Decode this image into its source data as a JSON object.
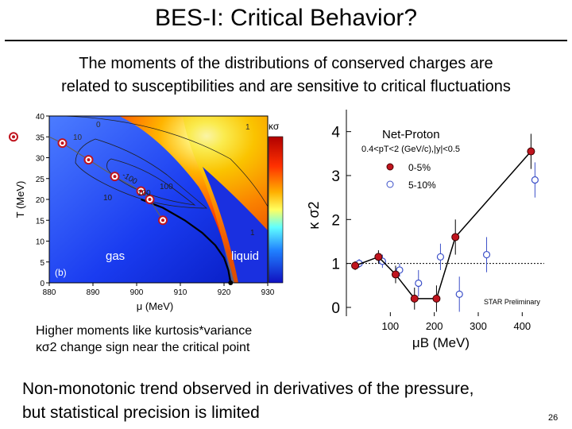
{
  "slide": {
    "title": "BES-I: Critical Behavior?",
    "intro_line1": "The moments of the distributions of conserved charges are",
    "intro_line2": "related to susceptibilities and are sensitive to critical fluctuations",
    "caption_line1": "Higher moments like kurtosis*variance",
    "caption_line2": "κσ2 change sign near the critical point",
    "bottom_line1": "Non-monotonic trend observed in derivatives of the pressure,",
    "bottom_line2": "but statistical precision is limited",
    "page_number": "26"
  },
  "colors": {
    "data_red": "#c0141e",
    "open_blue": "#3c50c8",
    "gas_blue": "#2a2ad2",
    "liquid_blue": "#1e1ec8"
  },
  "chart_data": [
    {
      "type": "heatmap",
      "ylabel": "T (MeV)",
      "xlabel": "μ (MeV)",
      "xlim": [
        880,
        930
      ],
      "ylim": [
        0,
        40
      ],
      "xticks": [
        "880",
        "890",
        "900",
        "910",
        "920",
        "930"
      ],
      "yticks": [
        "0",
        "5",
        "10",
        "15",
        "20",
        "25",
        "30",
        "35",
        "40"
      ],
      "colorbar_label": "κσ",
      "region_labels": [
        "gas",
        "liquid"
      ],
      "panel_label": "(b)",
      "contour_labels": [
        "0",
        "1",
        "10",
        "-100",
        "100",
        "100",
        "10",
        "1"
      ],
      "phase_boundary": [
        [
          901,
          20
        ],
        [
          906,
          18
        ],
        [
          911,
          15
        ],
        [
          915,
          12
        ],
        [
          918,
          9
        ],
        [
          920,
          6
        ],
        [
          921,
          3
        ],
        [
          921.5,
          0
        ]
      ],
      "trajectory_points": [
        [
          880,
          35
        ],
        [
          883,
          33.5
        ],
        [
          889,
          29.5
        ],
        [
          895,
          25.5
        ],
        [
          901,
          22
        ],
        [
          903,
          20
        ],
        [
          906,
          15
        ]
      ]
    },
    {
      "type": "scatter",
      "ylabel": "κ σ2",
      "xlabel": "μB (MeV)",
      "xlim": [
        0,
        450
      ],
      "ylim": [
        -0.2,
        4.5
      ],
      "xticks": [
        100,
        200,
        300,
        400
      ],
      "yticks": [
        0,
        1,
        2,
        3,
        4
      ],
      "reference_line": 1,
      "legend_title": "Net-Proton",
      "legend_subtitle": "0.4<pT<2 (GeV/c),|y|<0.5",
      "watermark": "STAR Preliminary",
      "series": [
        {
          "name": "0-5%",
          "marker": "filled-circle",
          "x": [
            20,
            73,
            112,
            155,
            205,
            248,
            420
          ],
          "y": [
            0.95,
            1.15,
            0.75,
            0.2,
            0.2,
            1.6,
            3.55
          ],
          "yerr": [
            0.1,
            0.15,
            0.2,
            0.25,
            0.3,
            0.4,
            0.4
          ]
        },
        {
          "name": "5-10%",
          "marker": "open-circle",
          "x": [
            20,
            73,
            112,
            155,
            205,
            248,
            310,
            420
          ],
          "y": [
            1.0,
            1.05,
            0.85,
            0.55,
            1.15,
            0.3,
            1.2,
            2.9
          ],
          "yerr": [
            0.1,
            0.15,
            0.15,
            0.3,
            0.3,
            0.4,
            0.4,
            0.4
          ]
        }
      ]
    }
  ]
}
